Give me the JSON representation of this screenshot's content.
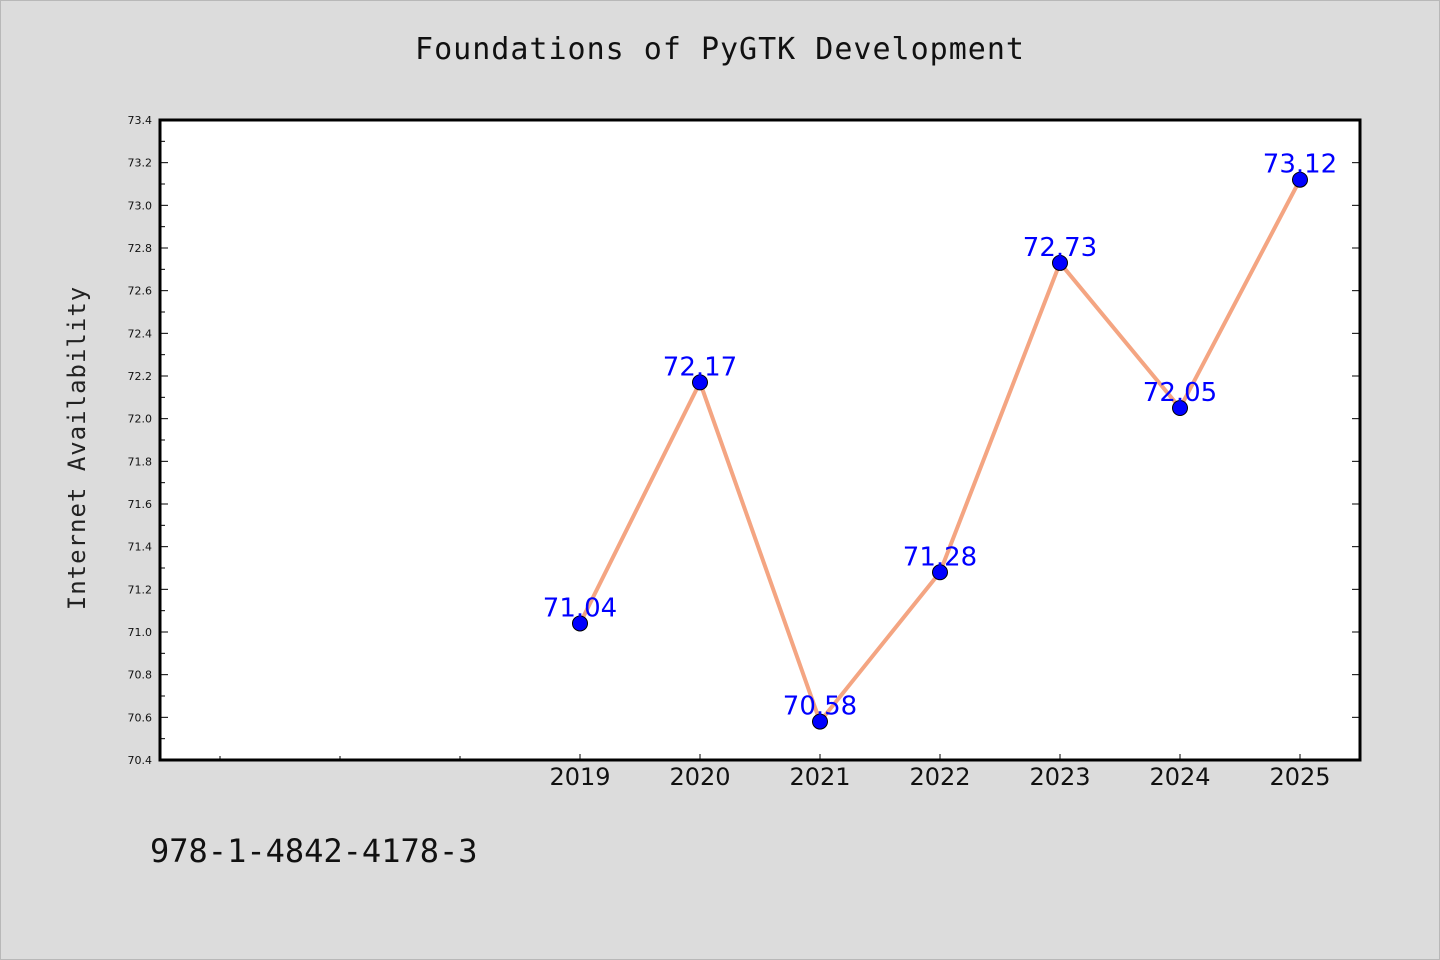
{
  "chart_data": {
    "type": "line",
    "title": "Foundations of PyGTK Development",
    "xlabel": "",
    "ylabel": "Internet Availability",
    "x": [
      "2019",
      "2020",
      "2021",
      "2022",
      "2023",
      "2024",
      "2025"
    ],
    "series": [
      {
        "values": [
          71.04,
          72.17,
          70.58,
          71.28,
          72.73,
          72.05,
          73.12
        ]
      }
    ],
    "data_labels": [
      "71.04",
      "72.17",
      "70.58",
      "71.28",
      "72.73",
      "72.05",
      "73.12"
    ],
    "ylim": [
      70.4,
      73.4
    ],
    "y_ticks": [
      "70.4",
      "70.6",
      "70.8",
      "71.0",
      "71.2",
      "71.4",
      "71.6",
      "71.8",
      "72.0",
      "72.2",
      "72.4",
      "72.6",
      "72.8",
      "73.0",
      "73.2",
      "73.4"
    ],
    "grid": false,
    "colors": {
      "line": "#f4a582",
      "marker": "#0000ff",
      "label": "#0000ff",
      "background": "#dcdcdc",
      "plot_area": "#ffffff"
    }
  },
  "footer_text": "978-1-4842-4178-3"
}
